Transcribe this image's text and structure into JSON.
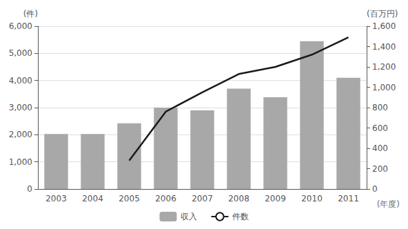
{
  "chart_data": {
    "type": "bar",
    "categories": [
      2003,
      2004,
      2005,
      2006,
      2007,
      2008,
      2009,
      2010,
      2011
    ],
    "xlabel": "(年度)",
    "ylabel": "(件)",
    "y2label": "(百万円)",
    "series": [
      {
        "name": "収入",
        "type": "bar",
        "color": "#a8a8a8",
        "values": [
          2030,
          2030,
          2420,
          3000,
          2900,
          3700,
          3380,
          5450,
          4100
        ]
      },
      {
        "name": "件数",
        "type": "line",
        "color": "#1a1a1a",
        "axis": "y2",
        "values": [
          null,
          null,
          280,
          760,
          950,
          1130,
          1200,
          1320,
          1490
        ]
      }
    ],
    "ylim": [
      0,
      6000
    ],
    "yticks": [
      0,
      1000,
      2000,
      3000,
      4000,
      5000,
      6000
    ],
    "y2lim": [
      0,
      1600
    ],
    "y2ticks": [
      0,
      200,
      400,
      600,
      800,
      1000,
      1200,
      1400,
      1600
    ],
    "grid": true,
    "legend": "bottom"
  }
}
